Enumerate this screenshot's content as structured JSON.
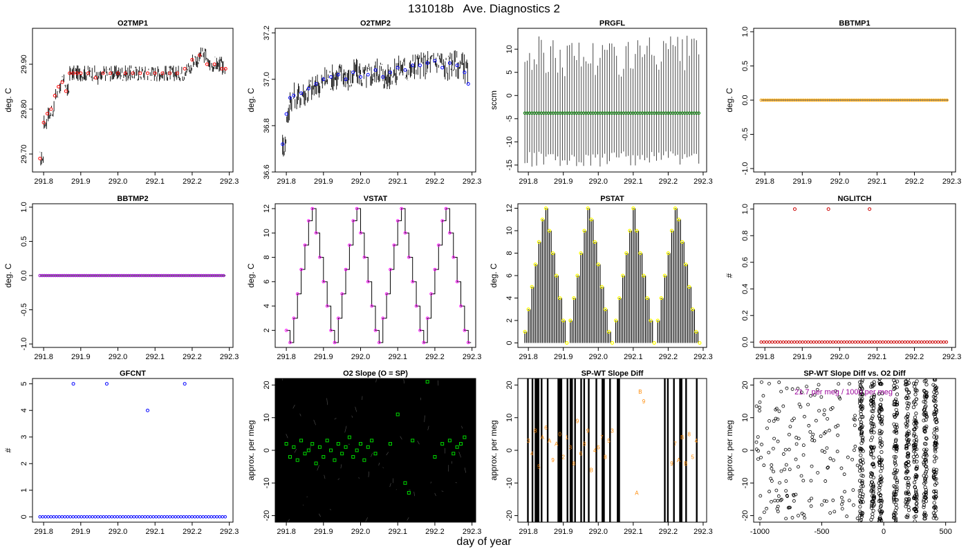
{
  "page": {
    "title": "131018b   Ave. Diagnostics 2",
    "xlabel": "day of year"
  },
  "chart_data": [
    {
      "type": "line",
      "title": "O2TMP1",
      "ylabel": "deg. C",
      "xlim": [
        291.77,
        292.31
      ],
      "ylim": [
        29.66,
        29.98
      ],
      "xticks": [
        291.8,
        291.9,
        292.0,
        292.1,
        292.2,
        292.3
      ],
      "xtick_labels": [
        "291.8",
        "291.9",
        "292.0",
        "292.1",
        "292.2",
        "292.3"
      ],
      "yticks": [
        29.7,
        29.8,
        29.9
      ],
      "ytick_labels": [
        "29.70",
        "29.80",
        "29.90"
      ],
      "series": [
        {
          "kind": "points",
          "marker": "circle",
          "color": "#ff0000",
          "x": [
            291.79,
            291.8,
            291.81,
            291.82,
            291.83,
            291.84,
            291.85,
            291.86,
            291.87,
            291.88,
            291.89,
            291.9,
            291.92,
            291.94,
            291.96,
            291.98,
            292.0,
            292.02,
            292.04,
            292.06,
            292.08,
            292.1,
            292.12,
            292.14,
            292.16,
            292.18,
            292.2,
            292.22,
            292.24,
            292.26,
            292.28,
            292.29
          ],
          "y": [
            29.69,
            29.77,
            29.79,
            29.8,
            29.83,
            29.85,
            29.86,
            29.84,
            29.88,
            29.88,
            29.88,
            29.88,
            29.88,
            29.87,
            29.88,
            29.88,
            29.88,
            29.88,
            29.88,
            29.88,
            29.88,
            29.88,
            29.88,
            29.88,
            29.88,
            29.89,
            29.91,
            29.92,
            29.9,
            29.9,
            29.89,
            29.89
          ]
        }
      ]
    },
    {
      "type": "line",
      "title": "O2TMP2",
      "ylabel": "deg. C",
      "xlim": [
        291.77,
        292.31
      ],
      "ylim": [
        36.6,
        37.22
      ],
      "xticks": [
        291.8,
        291.9,
        292.0,
        292.1,
        292.2,
        292.3
      ],
      "xtick_labels": [
        "291.8",
        "291.9",
        "292.0",
        "292.1",
        "292.2",
        "292.3"
      ],
      "yticks": [
        36.6,
        36.8,
        37.0,
        37.2
      ],
      "ytick_labels": [
        "36.6",
        "36.8",
        "37.0",
        "37.2"
      ],
      "series": [
        {
          "kind": "points",
          "marker": "circle",
          "color": "#0000ff",
          "x": [
            291.79,
            291.8,
            291.81,
            291.82,
            291.84,
            291.86,
            291.88,
            291.9,
            291.92,
            291.94,
            291.96,
            291.98,
            292.0,
            292.02,
            292.04,
            292.06,
            292.08,
            292.1,
            292.12,
            292.14,
            292.16,
            292.18,
            292.2,
            292.22,
            292.24,
            292.26,
            292.28,
            292.29
          ],
          "y": [
            36.72,
            36.85,
            36.92,
            36.93,
            36.94,
            36.96,
            36.98,
            37.0,
            37.01,
            37.02,
            37.0,
            37.03,
            37.01,
            37.02,
            37.04,
            37.01,
            37.03,
            37.05,
            37.04,
            37.06,
            37.06,
            37.07,
            37.08,
            37.05,
            37.07,
            37.06,
            37.03,
            36.98
          ]
        }
      ]
    },
    {
      "type": "line",
      "title": "PRGFL",
      "ylabel": "sccm",
      "xlim": [
        291.77,
        292.31
      ],
      "ylim": [
        -16.5,
        14.5
      ],
      "xticks": [
        291.8,
        291.9,
        292.0,
        292.1,
        292.2,
        292.3
      ],
      "xtick_labels": [
        "291.8",
        "291.9",
        "292.0",
        "292.1",
        "292.2",
        "292.3"
      ],
      "yticks": [
        -15,
        -10,
        -5,
        0,
        5,
        10
      ],
      "ytick_labels": [
        "-15",
        "-10",
        "-5",
        "0",
        "5",
        "10"
      ],
      "series": [
        {
          "kind": "hline",
          "color": "#008000",
          "x_range": [
            291.79,
            292.29
          ],
          "value": -3.8
        }
      ]
    },
    {
      "type": "scatter",
      "title": "BBTMP1",
      "ylabel": "deg. C",
      "xlim": [
        291.77,
        292.31
      ],
      "ylim": [
        -1.05,
        1.05
      ],
      "xticks": [
        291.8,
        291.9,
        292.0,
        292.1,
        292.2,
        292.3
      ],
      "xtick_labels": [
        "291.8",
        "291.9",
        "292.0",
        "292.1",
        "292.2",
        "292.3"
      ],
      "yticks": [
        -1.0,
        -0.5,
        0.0,
        0.5,
        1.0
      ],
      "ytick_labels": [
        "-1.0",
        "-0.5",
        "0.0",
        "0.5",
        "1.0"
      ],
      "series": [
        {
          "kind": "hline",
          "color": "#ffa500",
          "x_range": [
            291.79,
            292.29
          ],
          "value": 0.0
        }
      ]
    },
    {
      "type": "scatter",
      "title": "BBTMP2",
      "ylabel": "deg. C",
      "xlim": [
        291.77,
        292.31
      ],
      "ylim": [
        -1.05,
        1.05
      ],
      "xticks": [
        291.8,
        291.9,
        292.0,
        292.1,
        292.2,
        292.3
      ],
      "xtick_labels": [
        "291.8",
        "291.9",
        "292.0",
        "292.1",
        "292.2",
        "292.3"
      ],
      "yticks": [
        -1.0,
        -0.5,
        0.0,
        0.5,
        1.0
      ],
      "ytick_labels": [
        "-1.0",
        "-0.5",
        "0.0",
        "0.5",
        "1.0"
      ],
      "series": [
        {
          "kind": "hline",
          "color": "#9900cc",
          "x_range": [
            291.79,
            292.29
          ],
          "value": 0.0
        }
      ]
    },
    {
      "type": "line",
      "title": "VSTAT",
      "ylabel": "deg. C",
      "xlim": [
        291.77,
        292.31
      ],
      "ylim": [
        0.6,
        12.4
      ],
      "xticks": [
        291.8,
        291.9,
        292.0,
        292.1,
        292.2,
        292.3
      ],
      "xtick_labels": [
        "291.8",
        "291.9",
        "292.0",
        "292.1",
        "292.2",
        "292.3"
      ],
      "yticks": [
        2,
        4,
        6,
        8,
        10,
        12
      ],
      "ytick_labels": [
        "2",
        "4",
        "6",
        "8",
        "10",
        "12"
      ],
      "series": [
        {
          "kind": "points",
          "marker": "circle",
          "color": "#ff00ff",
          "x": [
            291.8,
            291.81,
            291.82,
            291.83,
            291.84,
            291.85,
            291.86,
            291.87,
            291.88,
            291.89,
            291.9,
            291.91,
            291.92,
            291.93,
            291.94,
            291.95,
            291.96,
            291.97,
            291.98,
            291.99,
            292.0,
            292.01,
            292.02,
            292.03,
            292.04,
            292.05,
            292.06,
            292.07,
            292.08,
            292.09,
            292.1,
            292.11,
            292.12,
            292.13,
            292.14,
            292.15,
            292.16,
            292.17,
            292.18,
            292.19,
            292.2,
            292.21,
            292.22,
            292.23,
            292.24,
            292.25,
            292.26,
            292.27,
            292.28,
            292.29
          ],
          "y": [
            2,
            1,
            3,
            5,
            7,
            9,
            11,
            12,
            10,
            8,
            6,
            4,
            2,
            1,
            3,
            5,
            7,
            9,
            11,
            12,
            10,
            8,
            6,
            4,
            2,
            1,
            3,
            5,
            7,
            9,
            11,
            12,
            10,
            8,
            6,
            4,
            2,
            1,
            3,
            5,
            7,
            9,
            11,
            12,
            10,
            8,
            6,
            4,
            2,
            1
          ]
        }
      ]
    },
    {
      "type": "bar",
      "title": "PSTAT",
      "ylabel": "deg. C",
      "xlim": [
        291.77,
        292.31
      ],
      "ylim": [
        -0.4,
        12.4
      ],
      "xticks": [
        291.8,
        291.9,
        292.0,
        292.1,
        292.2,
        292.3
      ],
      "xtick_labels": [
        "291.8",
        "291.9",
        "292.0",
        "292.1",
        "292.2",
        "292.3"
      ],
      "yticks": [
        0,
        2,
        4,
        6,
        8,
        10,
        12
      ],
      "ytick_labels": [
        "0",
        "2",
        "4",
        "6",
        "8",
        "10",
        "12"
      ],
      "series": [
        {
          "kind": "stems",
          "marker": "circle",
          "color": "#ffff00",
          "x": [
            291.79,
            291.8,
            291.81,
            291.82,
            291.83,
            291.84,
            291.85,
            291.86,
            291.87,
            291.88,
            291.89,
            291.9,
            291.91,
            291.92,
            291.93,
            291.94,
            291.95,
            291.96,
            291.97,
            291.98,
            291.99,
            292.0,
            292.01,
            292.02,
            292.03,
            292.04,
            292.05,
            292.06,
            292.07,
            292.08,
            292.09,
            292.1,
            292.11,
            292.12,
            292.13,
            292.14,
            292.15,
            292.16,
            292.17,
            292.18,
            292.19,
            292.2,
            292.21,
            292.22,
            292.23,
            292.24,
            292.25,
            292.26,
            292.27,
            292.28,
            292.29
          ],
          "y": [
            1,
            3,
            5,
            7,
            9,
            11,
            12,
            10,
            8,
            6,
            4,
            2,
            0,
            2,
            4,
            6,
            8,
            10,
            12,
            11,
            9,
            7,
            5,
            3,
            1,
            0,
            2,
            4,
            6,
            8,
            10,
            12,
            10,
            8,
            6,
            4,
            2,
            0,
            2,
            4,
            6,
            8,
            10,
            12,
            11,
            9,
            7,
            5,
            3,
            1,
            0
          ]
        }
      ]
    },
    {
      "type": "scatter",
      "title": "NGLITCH",
      "ylabel": "#",
      "xlim": [
        291.77,
        292.31
      ],
      "ylim": [
        -0.04,
        1.04
      ],
      "xticks": [
        291.8,
        291.9,
        292.0,
        292.1,
        292.2,
        292.3
      ],
      "xtick_labels": [
        "291.8",
        "291.9",
        "292.0",
        "292.1",
        "292.2",
        "292.3"
      ],
      "yticks": [
        0.0,
        0.2,
        0.4,
        0.6,
        0.8,
        1.0
      ],
      "ytick_labels": [
        "0.0",
        "0.2",
        "0.4",
        "0.6",
        "0.8",
        "1.0"
      ],
      "series": [
        {
          "kind": "points",
          "marker": "circle",
          "color": "#cc0000",
          "x": [
            291.88,
            291.97,
            292.08
          ],
          "y": [
            1,
            1,
            1
          ],
          "baseline": {
            "value": 0,
            "x_range": [
              291.79,
              292.29
            ]
          }
        }
      ]
    },
    {
      "type": "scatter",
      "title": "GFCNT",
      "ylabel": "#",
      "xlim": [
        291.77,
        292.31
      ],
      "ylim": [
        -0.2,
        5.2
      ],
      "xticks": [
        291.8,
        291.9,
        292.0,
        292.1,
        292.2,
        292.3
      ],
      "xtick_labels": [
        "291.8",
        "291.9",
        "292.0",
        "292.1",
        "292.2",
        "292.3"
      ],
      "yticks": [
        0,
        1,
        2,
        3,
        4,
        5
      ],
      "ytick_labels": [
        "0",
        "1",
        "2",
        "3",
        "4",
        "5"
      ],
      "series": [
        {
          "kind": "points",
          "marker": "circle",
          "color": "#0000ff",
          "x": [
            291.88,
            291.97,
            292.08,
            292.18
          ],
          "y": [
            5,
            5,
            4,
            5
          ],
          "baseline": {
            "value": 0,
            "x_range": [
              291.79,
              292.29
            ]
          }
        }
      ]
    },
    {
      "type": "scatter",
      "title": "O2 Slope (O = SP)",
      "ylabel": "approx. per meg",
      "xlim": [
        291.77,
        292.31
      ],
      "ylim": [
        -22,
        22
      ],
      "xticks": [
        291.8,
        291.9,
        292.0,
        292.1,
        292.2,
        292.3
      ],
      "xtick_labels": [
        "291.8",
        "291.9",
        "292.0",
        "292.1",
        "292.2",
        "292.3"
      ],
      "yticks": [
        -20,
        -10,
        0,
        10,
        20
      ],
      "ytick_labels": [
        "-20",
        "-10",
        "0",
        "10",
        "20"
      ],
      "series": [
        {
          "kind": "points",
          "marker": "square",
          "color": "#00dd00",
          "x": [
            291.8,
            291.81,
            291.82,
            291.83,
            291.84,
            291.85,
            291.86,
            291.87,
            291.88,
            291.89,
            291.9,
            291.91,
            291.92,
            291.93,
            291.94,
            291.95,
            291.96,
            291.97,
            291.98,
            291.99,
            292.0,
            292.01,
            292.02,
            292.03,
            292.04,
            292.08,
            292.1,
            292.12,
            292.13,
            292.14,
            292.18,
            292.2,
            292.22,
            292.24,
            292.25,
            292.26,
            292.27,
            292.28
          ],
          "y": [
            2,
            -2,
            1,
            -3,
            3,
            -1,
            0,
            2,
            -4,
            1,
            -2,
            3,
            0,
            -3,
            2,
            -1,
            1,
            4,
            -2,
            0,
            2,
            -3,
            1,
            3,
            -1,
            2,
            11,
            -10,
            -13,
            3,
            21,
            -2,
            2,
            3,
            -1,
            1,
            2,
            4
          ]
        }
      ]
    },
    {
      "type": "scatter",
      "title": "SP-WT Slope Diff",
      "ylabel": "approx. per meg",
      "xlim": [
        291.77,
        292.31
      ],
      "ylim": [
        -22,
        22
      ],
      "xticks": [
        291.8,
        291.9,
        292.0,
        292.1,
        292.2,
        292.3
      ],
      "xtick_labels": [
        "291.8",
        "291.9",
        "292.0",
        "292.1",
        "292.2",
        "292.3"
      ],
      "yticks": [
        -20,
        -10,
        0,
        10,
        20
      ],
      "ytick_labels": [
        "-20",
        "-10",
        "0",
        "10",
        "20"
      ],
      "series": [
        {
          "kind": "labels",
          "color": "#ff8800",
          "x": [
            291.8,
            291.81,
            291.82,
            291.83,
            291.84,
            291.85,
            291.86,
            291.87,
            291.88,
            291.89,
            291.9,
            291.91,
            291.92,
            291.93,
            291.94,
            291.95,
            291.96,
            291.97,
            291.98,
            291.99,
            292.0,
            292.01,
            292.02,
            292.03,
            292.04,
            292.11,
            292.12,
            292.13,
            292.21,
            292.22,
            292.23,
            292.24,
            292.25,
            292.26,
            292.27,
            292.28
          ],
          "y": [
            3,
            -1,
            6,
            -5,
            4,
            7,
            3,
            -3,
            2,
            5,
            -2,
            4,
            1,
            -4,
            9,
            -1,
            2,
            6,
            -6,
            0,
            1,
            4,
            -2,
            3,
            6,
            -13,
            18,
            15,
            -4,
            2,
            -3,
            4,
            -4,
            5,
            -2,
            3
          ],
          "text": [
            "3",
            "4",
            "8",
            "5",
            "A",
            "6",
            "A",
            "9",
            "A",
            "0",
            "2",
            "1",
            "3",
            "8",
            "9",
            "6",
            "8",
            "9",
            "B",
            "4",
            "6",
            "7",
            "8",
            "5",
            "3",
            "A",
            "B",
            "9",
            "9",
            "7",
            "A",
            "B",
            "B",
            "8",
            "5",
            "4"
          ]
        }
      ]
    },
    {
      "type": "scatter",
      "title": "SP-WT Slope Diff vs. O2 Diff",
      "ylabel": "approx. per meg",
      "xlim": [
        -1050,
        580
      ],
      "ylim": [
        -22,
        22
      ],
      "xticks": [
        -1000,
        -500,
        0,
        500
      ],
      "xtick_labels": [
        "-1000",
        "-500",
        "0",
        "500"
      ],
      "yticks": [
        -20,
        -10,
        0,
        10,
        20
      ],
      "ytick_labels": [
        "-20",
        "-10",
        "0",
        "10",
        "20"
      ],
      "annotation": "21.7 per meg / 1000 per meg",
      "series": [
        {
          "kind": "clusters",
          "marker": "circle",
          "color": "#000000",
          "x": [
            -180,
            -90,
            -25,
            95,
            190,
            255,
            335,
            415
          ],
          "y_range": [
            -22,
            22
          ]
        }
      ]
    }
  ]
}
